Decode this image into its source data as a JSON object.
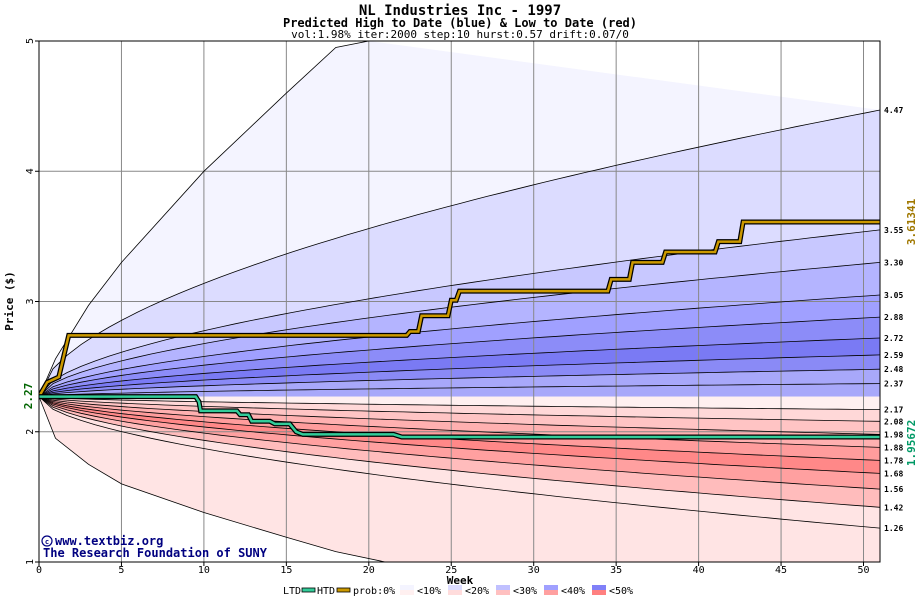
{
  "chart_data": {
    "type": "area",
    "title": "NL Industries Inc - 1997",
    "subtitle": "Predicted High to Date (blue) &  Low to Date (red)",
    "params": "vol:1.98% iter:2000 step:10 hurst:0.57 drift:0.07/0",
    "xlabel": "Week",
    "ylabel": "Price ($)",
    "xlim": [
      0,
      51
    ],
    "ylim": [
      1,
      5
    ],
    "x_ticks": [
      "0",
      "5",
      "10",
      "15",
      "20",
      "25",
      "30",
      "35",
      "40",
      "45",
      "50"
    ],
    "y_ticks": [
      "1",
      "2",
      "3",
      "4",
      "5"
    ],
    "grid": true,
    "start_price": "2.27",
    "start_value": 2.27,
    "high_bands": {
      "end_values": [
        4.47,
        3.55,
        3.3,
        3.05,
        2.88,
        2.72,
        2.59,
        2.48,
        2.37
      ],
      "labels": [
        "4.47",
        "3.55",
        "3.30",
        "3.05",
        "2.88",
        "2.72",
        "2.59",
        "2.48",
        "2.37"
      ]
    },
    "low_bands": {
      "end_values": [
        2.17,
        2.08,
        1.98,
        1.88,
        1.78,
        1.68,
        1.56,
        1.42,
        1.26
      ],
      "labels": [
        "2.17",
        "2.08",
        "1.98",
        "1.88",
        "1.78",
        "1.68",
        "1.56",
        "1.42",
        "1.26"
      ]
    },
    "high_outer_curve": [
      [
        0,
        2.27
      ],
      [
        1,
        2.56
      ],
      [
        3,
        2.97
      ],
      [
        5,
        3.3
      ],
      [
        10,
        4.0
      ],
      [
        15,
        4.6
      ],
      [
        18,
        4.95
      ],
      [
        20,
        5.0
      ]
    ],
    "low_outer_curve": [
      [
        0,
        2.27
      ],
      [
        1,
        1.95
      ],
      [
        3,
        1.75
      ],
      [
        5,
        1.6
      ],
      [
        10,
        1.38
      ],
      [
        15,
        1.19
      ],
      [
        18,
        1.08
      ],
      [
        21,
        1.0
      ],
      [
        51,
        0.9
      ]
    ],
    "series": [
      {
        "name": "HTD",
        "value_label": "3.61341",
        "color": "#cc9900",
        "points": [
          [
            0,
            2.27
          ],
          [
            0.5,
            2.38
          ],
          [
            1.2,
            2.42
          ],
          [
            1.8,
            2.74
          ],
          [
            22.3,
            2.74
          ],
          [
            22.5,
            2.77
          ],
          [
            23,
            2.77
          ],
          [
            23.2,
            2.89
          ],
          [
            24.8,
            2.89
          ],
          [
            25,
            3.01
          ],
          [
            25.3,
            3.01
          ],
          [
            25.5,
            3.08
          ],
          [
            34.5,
            3.08
          ],
          [
            34.7,
            3.17
          ],
          [
            35.8,
            3.17
          ],
          [
            36,
            3.3
          ],
          [
            37.8,
            3.3
          ],
          [
            38,
            3.38
          ],
          [
            41,
            3.38
          ],
          [
            41.2,
            3.46
          ],
          [
            42.5,
            3.46
          ],
          [
            42.7,
            3.61
          ],
          [
            51,
            3.61
          ]
        ]
      },
      {
        "name": "LTD",
        "value_label": "1.95672",
        "color": "#33cc99",
        "points": [
          [
            0,
            2.27
          ],
          [
            9.5,
            2.27
          ],
          [
            9.7,
            2.23
          ],
          [
            9.8,
            2.16
          ],
          [
            12,
            2.16
          ],
          [
            12.2,
            2.13
          ],
          [
            12.7,
            2.13
          ],
          [
            12.9,
            2.08
          ],
          [
            14,
            2.08
          ],
          [
            14.3,
            2.06
          ],
          [
            15.2,
            2.06
          ],
          [
            15.4,
            2.03
          ],
          [
            15.6,
            2.0
          ],
          [
            16,
            1.98
          ],
          [
            21.5,
            1.98
          ],
          [
            22,
            1.96
          ],
          [
            51,
            1.96
          ]
        ]
      }
    ],
    "legend": {
      "ltd": "LTD",
      "htd": "HTD",
      "prob": "prob:0%",
      "buckets": [
        "<10%",
        "<20%",
        "<30%",
        "<40%",
        "<50%"
      ],
      "bucket_colors": [
        "#f4f4ff",
        "#dcdcff",
        "#c0c0ff",
        "#a0a0ff",
        "#8080f8"
      ],
      "bucket_colors_red": [
        "#fff0f0",
        "#ffdcdc",
        "#ffc0c0",
        "#ffa0a0",
        "#ff8080"
      ]
    }
  },
  "credits": {
    "site": "www.textbiz.org",
    "org": "The Research Foundation of SUNY"
  }
}
